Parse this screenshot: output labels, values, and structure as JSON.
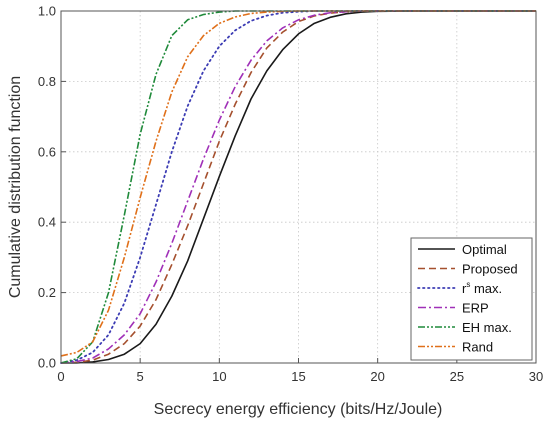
{
  "chart_data": {
    "type": "line",
    "title": "",
    "xlabel": "Secrecy energy efficiency (bits/Hz/Joule)",
    "ylabel": "Cumulative distribution function",
    "xlim": [
      0,
      30
    ],
    "ylim": [
      0,
      1
    ],
    "xticks": [
      "0",
      "5",
      "10",
      "15",
      "20",
      "25",
      "30"
    ],
    "yticks": [
      "0.0",
      "0.2",
      "0.4",
      "0.6",
      "0.8",
      "1.0"
    ],
    "grid": true,
    "legend_position": "bottom-right",
    "series": [
      {
        "name": "Optimal",
        "color": "#1a1a1a",
        "dash": "solid",
        "x": [
          0,
          1,
          2,
          3,
          4,
          5,
          6,
          7,
          8,
          9,
          10,
          11,
          12,
          13,
          14,
          15,
          16,
          17,
          18,
          19,
          20,
          22,
          25,
          30
        ],
        "y": [
          0.0,
          0.0,
          0.003,
          0.01,
          0.025,
          0.055,
          0.11,
          0.19,
          0.29,
          0.41,
          0.53,
          0.645,
          0.75,
          0.83,
          0.89,
          0.935,
          0.965,
          0.982,
          0.992,
          0.997,
          0.999,
          1.0,
          1.0,
          1.0
        ]
      },
      {
        "name": "Proposed",
        "color": "#a5502e",
        "dash": "dash",
        "x": [
          0,
          1,
          2,
          3,
          4,
          5,
          6,
          7,
          8,
          9,
          10,
          11,
          12,
          13,
          14,
          15,
          16,
          17,
          18,
          19,
          20,
          22,
          25,
          30
        ],
        "y": [
          0.0,
          0.002,
          0.008,
          0.025,
          0.055,
          0.105,
          0.18,
          0.28,
          0.39,
          0.51,
          0.63,
          0.735,
          0.825,
          0.895,
          0.94,
          0.97,
          0.986,
          0.994,
          0.998,
          1.0,
          1.0,
          1.0,
          1.0,
          1.0
        ]
      },
      {
        "name": "r^s max.",
        "color": "#3c3cb4",
        "dash": "dot",
        "x": [
          0,
          1,
          2,
          3,
          4,
          5,
          6,
          7,
          8,
          9,
          10,
          11,
          12,
          13,
          14,
          15,
          16,
          17,
          18,
          20,
          25,
          30
        ],
        "y": [
          0.0,
          0.008,
          0.03,
          0.08,
          0.17,
          0.3,
          0.45,
          0.6,
          0.73,
          0.83,
          0.9,
          0.945,
          0.972,
          0.987,
          0.995,
          0.998,
          1.0,
          1.0,
          1.0,
          1.0,
          1.0,
          1.0
        ]
      },
      {
        "name": "ERP",
        "color": "#a030b8",
        "dash": "dashdot",
        "x": [
          0,
          1,
          2,
          3,
          4,
          5,
          6,
          7,
          8,
          9,
          10,
          11,
          12,
          13,
          14,
          15,
          16,
          17,
          18,
          19,
          20,
          22,
          25,
          30
        ],
        "y": [
          0.0,
          0.004,
          0.014,
          0.04,
          0.08,
          0.14,
          0.23,
          0.34,
          0.46,
          0.58,
          0.69,
          0.785,
          0.86,
          0.915,
          0.952,
          0.975,
          0.988,
          0.995,
          0.998,
          1.0,
          1.0,
          1.0,
          1.0,
          1.0
        ]
      },
      {
        "name": "EH max.",
        "color": "#1f8a3a",
        "dash": "dashdotdot",
        "x": [
          0,
          1,
          2,
          3,
          4,
          5,
          6,
          7,
          8,
          9,
          10,
          11,
          12,
          14,
          16,
          20,
          25,
          30
        ],
        "y": [
          0.0,
          0.012,
          0.06,
          0.2,
          0.42,
          0.65,
          0.82,
          0.93,
          0.975,
          0.99,
          0.997,
          1.0,
          1.0,
          1.0,
          1.0,
          1.0,
          1.0,
          1.0
        ]
      },
      {
        "name": "Rand",
        "color": "#e0701a",
        "dash": "dashdotdot",
        "x": [
          0,
          1,
          2,
          3,
          4,
          5,
          6,
          7,
          8,
          9,
          10,
          11,
          12,
          13,
          14,
          15,
          16,
          18,
          20,
          25,
          30
        ],
        "y": [
          0.02,
          0.03,
          0.06,
          0.15,
          0.3,
          0.47,
          0.63,
          0.77,
          0.87,
          0.93,
          0.965,
          0.983,
          0.993,
          0.997,
          0.999,
          1.0,
          1.0,
          1.0,
          1.0,
          1.0,
          1.0
        ]
      }
    ]
  },
  "legend": {
    "optimal": "Optimal",
    "proposed": "Proposed",
    "rs_base": "r",
    "rs_sup": "s",
    "rs_tail": " max.",
    "erp": "ERP",
    "eh": "EH max.",
    "rand": "Rand"
  }
}
